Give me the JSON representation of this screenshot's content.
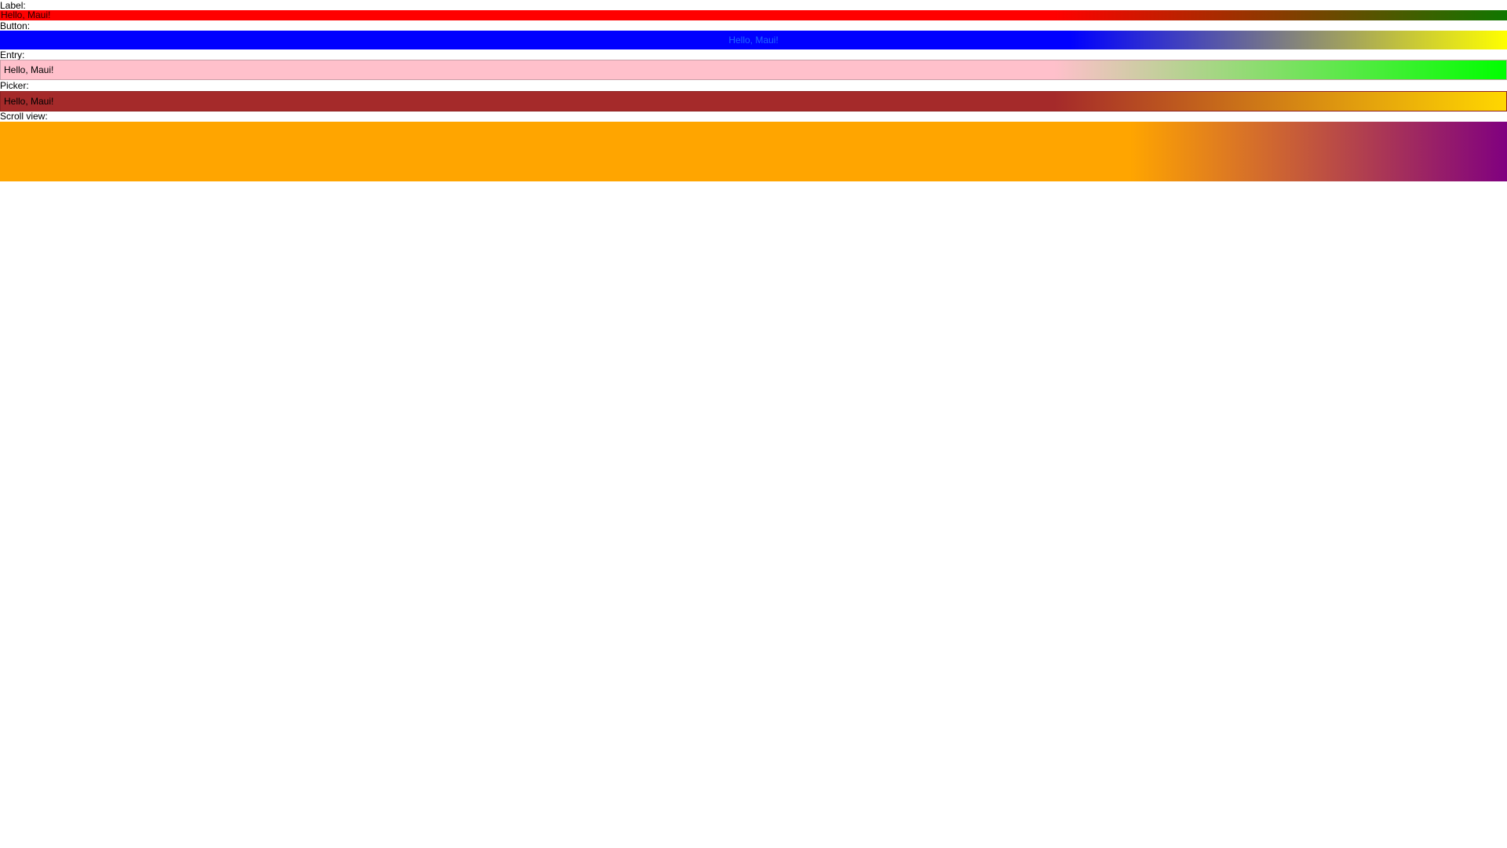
{
  "label_section": {
    "heading": "Label:",
    "text": "Hello, Maui!",
    "gradient_start": "#ff0000",
    "gradient_end": "#107700"
  },
  "button_section": {
    "heading": "Button:",
    "text": "Hello, Maui!",
    "gradient_start": "#0000ff",
    "gradient_end": "#ffff00"
  },
  "entry_section": {
    "heading": "Entry:",
    "value": "Hello, Maui!",
    "gradient_start": "#ffc0cb",
    "gradient_end": "#00ff00"
  },
  "picker_section": {
    "heading": "Picker:",
    "selected": "Hello, Maui!",
    "gradient_start": "#a52a2a",
    "gradient_end": "#ffd700"
  },
  "scroll_section": {
    "heading": "Scroll view:",
    "gradient_start": "#ffa500",
    "gradient_end": "#800080"
  }
}
